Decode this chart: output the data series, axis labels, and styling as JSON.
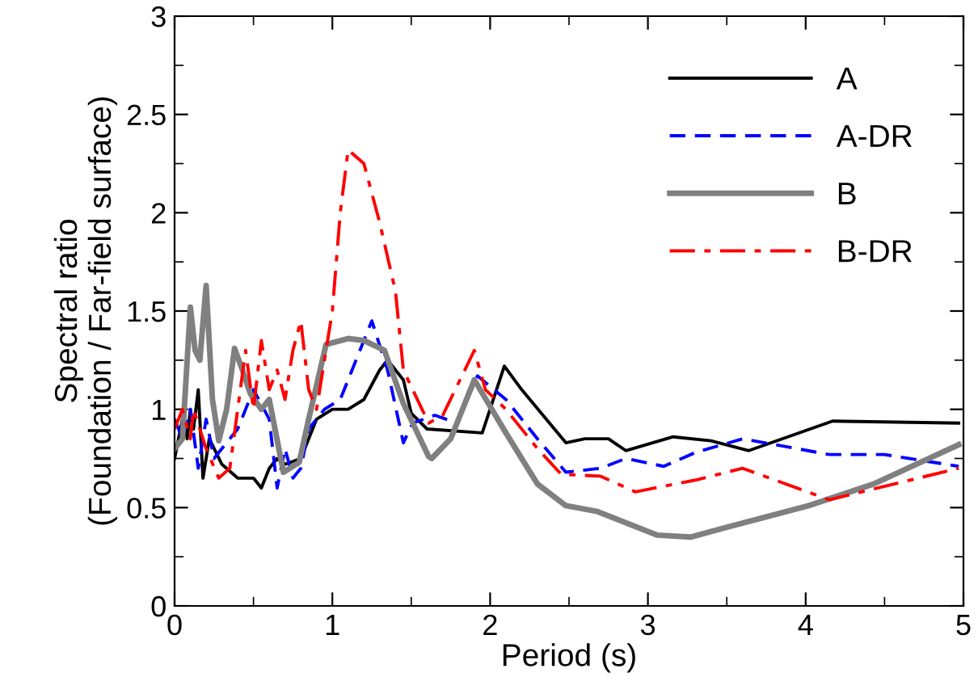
{
  "chart_data": {
    "type": "line",
    "xlabel": "Period (s)",
    "ylabel": "Spectral ratio\n(Foundation / Far-field surface)",
    "xlim": [
      0,
      5
    ],
    "ylim": [
      0,
      3
    ],
    "xticks": [
      0,
      1,
      2,
      3,
      4,
      5
    ],
    "yticks": [
      0,
      {
        "value": 0.5,
        "label": "0.5"
      },
      1,
      {
        "value": 1.5,
        "label": "1.5"
      },
      2,
      {
        "value": 2.5,
        "label": "2.5"
      },
      3
    ],
    "grid": false,
    "legend": "top right",
    "marker": "none",
    "series": [
      {
        "name": "A",
        "color": "#000000",
        "line_style": "solid",
        "x": [
          0,
          0.05,
          0.08,
          0.1,
          0.12,
          0.15,
          0.18,
          0.22,
          0.3,
          0.4,
          0.5,
          0.55,
          0.6,
          0.65,
          0.7,
          0.8,
          0.9,
          1.0,
          1.1,
          1.2,
          1.3,
          1.35,
          1.45,
          1.5,
          1.6,
          1.95,
          2.09,
          2.2,
          2.48,
          2.6,
          2.75,
          2.86,
          3.16,
          3.4,
          3.64,
          4.17,
          4.97
        ],
        "values": [
          0.75,
          0.95,
          0.85,
          1.0,
          0.9,
          1.1,
          0.65,
          0.85,
          0.72,
          0.65,
          0.65,
          0.6,
          0.7,
          0.75,
          0.72,
          0.75,
          0.95,
          1.0,
          1.0,
          1.05,
          1.2,
          1.25,
          1.15,
          0.98,
          0.9,
          0.88,
          1.22,
          1.1,
          0.83,
          0.85,
          0.85,
          0.79,
          0.86,
          0.84,
          0.79,
          0.94,
          0.93
        ]
      },
      {
        "name": "A-DR",
        "color": "#0000ff",
        "line_style": "dashed",
        "x": [
          0,
          0.05,
          0.1,
          0.15,
          0.2,
          0.25,
          0.3,
          0.4,
          0.5,
          0.6,
          0.65,
          0.7,
          0.75,
          0.8,
          0.85,
          0.95,
          1.05,
          1.1,
          1.2,
          1.25,
          1.35,
          1.45,
          1.51,
          1.65,
          1.79,
          1.92,
          2.1,
          2.3,
          2.48,
          2.7,
          2.86,
          3.1,
          3.3,
          3.6,
          4.15,
          4.5,
          4.97
        ],
        "values": [
          0.95,
          0.85,
          1.0,
          0.7,
          0.95,
          0.75,
          0.8,
          0.9,
          1.1,
          0.95,
          0.6,
          0.8,
          0.65,
          0.7,
          0.9,
          1.0,
          1.05,
          1.15,
          1.35,
          1.45,
          1.2,
          0.83,
          0.93,
          0.97,
          0.93,
          1.17,
          1.05,
          0.85,
          0.68,
          0.7,
          0.75,
          0.71,
          0.78,
          0.85,
          0.77,
          0.77,
          0.71
        ]
      },
      {
        "name": "B",
        "color": "#808080",
        "line_style": "solid",
        "x": [
          0,
          0.05,
          0.1,
          0.13,
          0.16,
          0.2,
          0.24,
          0.28,
          0.33,
          0.38,
          0.43,
          0.48,
          0.55,
          0.6,
          0.69,
          0.79,
          0.85,
          0.96,
          1.1,
          1.2,
          1.33,
          1.45,
          1.61,
          1.63,
          1.75,
          1.9,
          2.1,
          2.3,
          2.48,
          2.68,
          3.06,
          3.27,
          3.5,
          4.02,
          4.43,
          4.97
        ],
        "values": [
          0.8,
          0.85,
          1.52,
          1.3,
          1.25,
          1.63,
          1.05,
          0.84,
          1.0,
          1.31,
          1.2,
          1.08,
          1.0,
          1.05,
          0.68,
          0.73,
          0.95,
          1.33,
          1.36,
          1.35,
          1.3,
          1.03,
          0.76,
          0.75,
          0.85,
          1.15,
          0.88,
          0.62,
          0.51,
          0.48,
          0.36,
          0.35,
          0.4,
          0.51,
          0.62,
          0.82
        ]
      },
      {
        "name": "B-DR",
        "color": "#ff0000",
        "line_style": "dashdot",
        "x": [
          0,
          0.05,
          0.1,
          0.12,
          0.2,
          0.28,
          0.35,
          0.4,
          0.45,
          0.5,
          0.55,
          0.6,
          0.65,
          0.7,
          0.75,
          0.8,
          0.85,
          0.9,
          1.0,
          1.05,
          1.1,
          1.2,
          1.3,
          1.4,
          1.45,
          1.61,
          1.7,
          1.9,
          1.97,
          2.1,
          2.3,
          2.45,
          2.7,
          2.92,
          3.3,
          3.6,
          4.15,
          4.97
        ],
        "values": [
          0.9,
          1.0,
          0.85,
          1.0,
          0.8,
          0.65,
          0.7,
          1.0,
          1.3,
          1.0,
          1.35,
          1.1,
          1.2,
          1.05,
          1.3,
          1.45,
          1.1,
          1.0,
          1.5,
          2.0,
          2.32,
          2.25,
          1.95,
          1.6,
          1.2,
          0.93,
          0.97,
          1.3,
          1.1,
          1.0,
          0.8,
          0.67,
          0.66,
          0.58,
          0.64,
          0.7,
          0.54,
          0.7
        ]
      }
    ]
  }
}
